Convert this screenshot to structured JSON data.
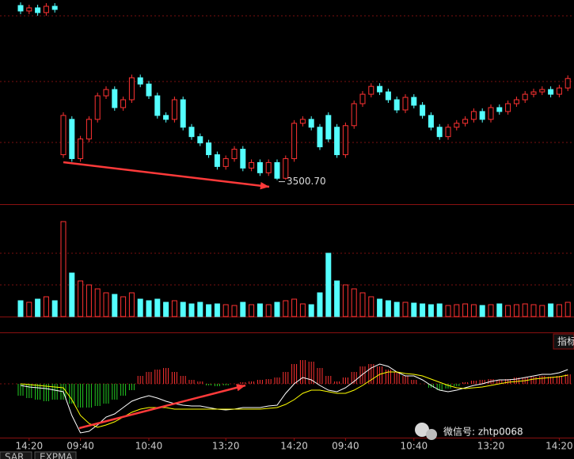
{
  "chart_data": [
    {
      "type": "candlestick",
      "color_up": "#ff3232",
      "color_down": "#54ffff",
      "ylim": [
        3470,
        3728
      ],
      "annotation": "3500.70",
      "annotation_index": 30,
      "open": [
        3723,
        3716,
        3720,
        3714,
        3722,
        3533,
        3578,
        3528,
        3553,
        3578,
        3608,
        3616,
        3593,
        3603,
        3631,
        3623,
        3608,
        3583,
        3578,
        3603,
        3568,
        3556,
        3548,
        3533,
        3518,
        3528,
        3540,
        3516,
        3523,
        3510,
        3523,
        3503,
        3528,
        3573,
        3578,
        3568,
        3583,
        3568,
        3533,
        3570,
        3598,
        3610,
        3620,
        3613,
        3603,
        3590,
        3606,
        3596,
        3583,
        3568,
        3556,
        3568,
        3573,
        3578,
        3588,
        3578,
        3593,
        3588,
        3598,
        3603,
        3610,
        3613,
        3616,
        3610,
        3618
      ],
      "high": [
        3727,
        3724,
        3724,
        3726,
        3726,
        3587,
        3582,
        3557,
        3582,
        3612,
        3620,
        3620,
        3607,
        3635,
        3635,
        3627,
        3612,
        3587,
        3607,
        3607,
        3572,
        3560,
        3552,
        3537,
        3532,
        3544,
        3544,
        3527,
        3527,
        3527,
        3527,
        3532,
        3577,
        3582,
        3582,
        3572,
        3587,
        3572,
        3574,
        3602,
        3614,
        3624,
        3624,
        3617,
        3607,
        3610,
        3610,
        3600,
        3587,
        3572,
        3572,
        3577,
        3582,
        3592,
        3592,
        3597,
        3597,
        3602,
        3607,
        3614,
        3617,
        3620,
        3620,
        3622,
        3634
      ],
      "low": [
        3712,
        3712,
        3710,
        3710,
        3714,
        3529,
        3524,
        3524,
        3549,
        3574,
        3604,
        3589,
        3589,
        3599,
        3619,
        3604,
        3579,
        3574,
        3574,
        3564,
        3552,
        3544,
        3529,
        3514,
        3514,
        3524,
        3512,
        3512,
        3506,
        3506,
        3500.7,
        3501,
        3524,
        3569,
        3564,
        3539,
        3549,
        3529,
        3529,
        3566,
        3594,
        3606,
        3609,
        3599,
        3586,
        3586,
        3592,
        3579,
        3564,
        3552,
        3552,
        3564,
        3569,
        3574,
        3574,
        3574,
        3584,
        3584,
        3594,
        3599,
        3606,
        3609,
        3606,
        3606,
        3614
      ],
      "close": [
        3716,
        3720,
        3714,
        3722,
        3718,
        3583,
        3528,
        3553,
        3578,
        3608,
        3616,
        3593,
        3603,
        3631,
        3623,
        3608,
        3583,
        3578,
        3603,
        3568,
        3556,
        3548,
        3533,
        3518,
        3528,
        3540,
        3516,
        3523,
        3510,
        3523,
        3503,
        3528,
        3573,
        3578,
        3568,
        3543,
        3553,
        3533,
        3570,
        3598,
        3610,
        3620,
        3613,
        3603,
        3590,
        3606,
        3596,
        3583,
        3568,
        3556,
        3568,
        3573,
        3578,
        3588,
        3578,
        3593,
        3588,
        3598,
        3603,
        3610,
        3613,
        3616,
        3610,
        3618,
        3630
      ]
    },
    {
      "type": "bar",
      "ylim": [
        0,
        140
      ],
      "values": [
        20,
        18,
        22,
        25,
        20,
        120,
        55,
        45,
        40,
        35,
        30,
        28,
        25,
        30,
        22,
        20,
        22,
        18,
        20,
        18,
        16,
        18,
        15,
        16,
        15,
        14,
        18,
        15,
        16,
        15,
        18,
        20,
        22,
        16,
        15,
        30,
        80,
        45,
        40,
        35,
        30,
        25,
        22,
        20,
        18,
        18,
        17,
        16,
        15,
        16,
        14,
        15,
        16,
        15,
        14,
        15,
        16,
        14,
        15,
        16,
        15,
        14,
        16,
        15,
        18
      ]
    },
    {
      "type": "macd",
      "ylim": [
        -65,
        40
      ],
      "categories": [
        null,
        "14:20",
        null,
        null,
        null,
        null,
        null,
        "09:40",
        null,
        null,
        null,
        null,
        null,
        null,
        null,
        "10:40",
        null,
        null,
        null,
        null,
        null,
        null,
        null,
        null,
        "13:20",
        null,
        null,
        null,
        null,
        null,
        null,
        null,
        "14:20",
        null,
        null,
        null,
        null,
        null,
        "09:40",
        null,
        null,
        null,
        null,
        null,
        null,
        null,
        "10:40",
        null,
        null,
        null,
        null,
        null,
        null,
        null,
        null,
        "13:20",
        null,
        null,
        null,
        null,
        null,
        null,
        null,
        "14:20",
        null
      ],
      "histogram": [
        -15,
        -18,
        -20,
        -22,
        -20,
        -20,
        -25,
        -30,
        -30,
        -28,
        -25,
        -20,
        -15,
        -8,
        10,
        15,
        18,
        20,
        15,
        10,
        5,
        3,
        -2,
        -3,
        -2,
        0,
        2,
        3,
        5,
        6,
        8,
        15,
        25,
        30,
        28,
        20,
        10,
        3,
        8,
        15,
        22,
        25,
        22,
        18,
        15,
        10,
        5,
        0,
        -5,
        -8,
        -6,
        -3,
        2,
        4,
        5,
        6,
        5,
        6,
        8,
        8,
        9,
        10,
        9,
        10,
        12
      ],
      "color_up": "#ff3232",
      "color_down": "#22cc22",
      "series": [
        {
          "color": "#ffffff",
          "values": [
            -2,
            -4,
            -5,
            -6,
            -8,
            -10,
            -40,
            -62,
            -60,
            -52,
            -42,
            -38,
            -30,
            -22,
            -18,
            -15,
            -18,
            -22,
            -25,
            -27,
            -28,
            -28,
            -30,
            -32,
            -33,
            -32,
            -30,
            -30,
            -30,
            -28,
            -27,
            -12,
            0,
            8,
            5,
            -2,
            -8,
            -10,
            -5,
            3,
            12,
            20,
            25,
            22,
            15,
            10,
            10,
            5,
            -2,
            -8,
            -10,
            -8,
            -5,
            -2,
            0,
            3,
            5,
            5,
            6,
            8,
            10,
            12,
            12,
            14,
            18
          ]
        },
        {
          "color": "#ffff00",
          "values": [
            0,
            -1,
            -2,
            -3,
            -4,
            -5,
            -20,
            -40,
            -50,
            -55,
            -52,
            -48,
            -42,
            -36,
            -32,
            -30,
            -30,
            -30,
            -32,
            -32,
            -32,
            -32,
            -32,
            -32,
            -32,
            -32,
            -32,
            -32,
            -32,
            -31,
            -30,
            -26,
            -20,
            -12,
            -8,
            -8,
            -10,
            -12,
            -12,
            -8,
            -2,
            5,
            12,
            15,
            15,
            13,
            12,
            10,
            6,
            2,
            -2,
            -5,
            -6,
            -5,
            -4,
            -2,
            0,
            2,
            3,
            4,
            6,
            7,
            8,
            9,
            11
          ]
        }
      ]
    }
  ],
  "indicator_button": "指标",
  "tabs": [
    "SAR",
    "EXPMA"
  ],
  "watermark": "微信号: zhtp0068"
}
